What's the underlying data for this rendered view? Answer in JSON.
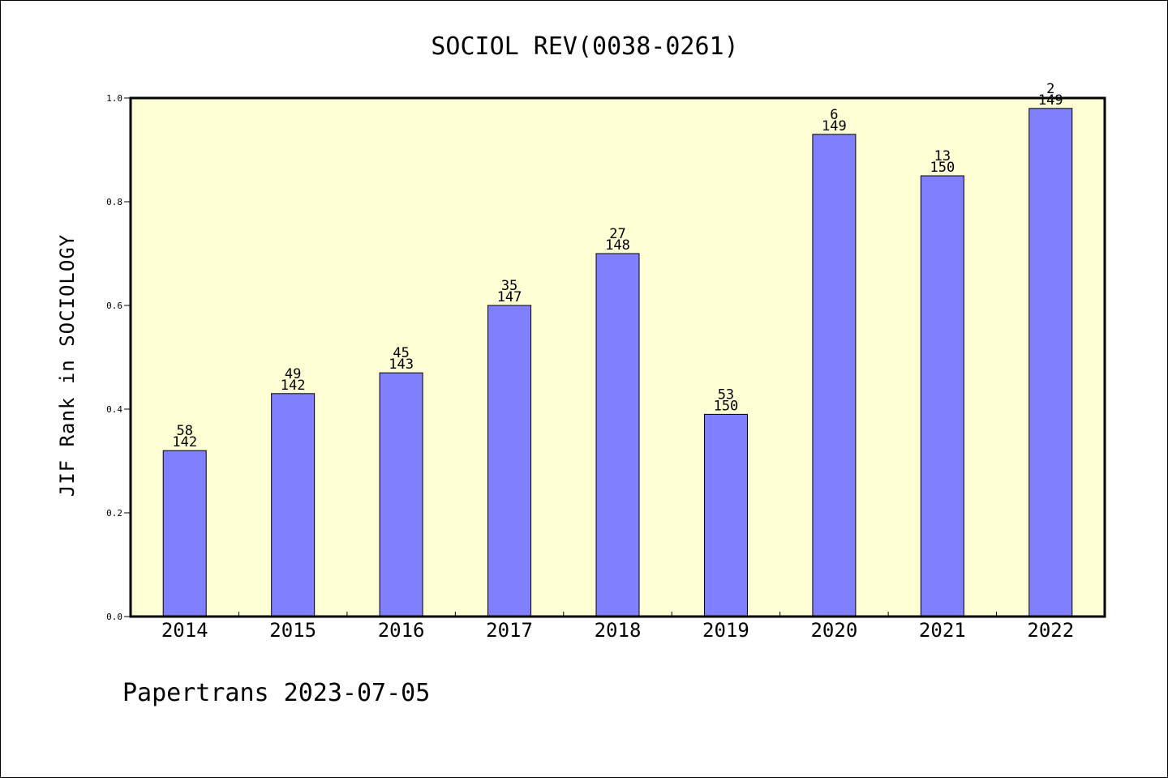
{
  "chart_data": {
    "type": "bar",
    "title": "SOCIOL REV(0038-0261)",
    "xlabel": "",
    "ylabel": "JIF Rank in SOCIOLOGY",
    "ylim": [
      0,
      1
    ],
    "yticks": [
      "0.0",
      "0.2",
      "0.4",
      "0.6",
      "0.8",
      "1.0"
    ],
    "grid": false,
    "categories": [
      "2014",
      "2015",
      "2016",
      "2017",
      "2018",
      "2019",
      "2020",
      "2021",
      "2022"
    ],
    "values": [
      0.32,
      0.43,
      0.47,
      0.6,
      0.7,
      0.39,
      0.93,
      0.85,
      0.98
    ],
    "labels": [
      {
        "rank": "58",
        "total": "142"
      },
      {
        "rank": "49",
        "total": "142"
      },
      {
        "rank": "45",
        "total": "143"
      },
      {
        "rank": "35",
        "total": "147"
      },
      {
        "rank": "27",
        "total": "148"
      },
      {
        "rank": "53",
        "total": "150"
      },
      {
        "rank": "6",
        "total": "149"
      },
      {
        "rank": "13",
        "total": "150"
      },
      {
        "rank": "2",
        "total": "149"
      }
    ],
    "colors": {
      "plot_background": "#ffffd5",
      "bar_fill": "#8080ff",
      "bar_stroke": "#000000"
    }
  },
  "footer": "Papertrans 2023-07-05"
}
